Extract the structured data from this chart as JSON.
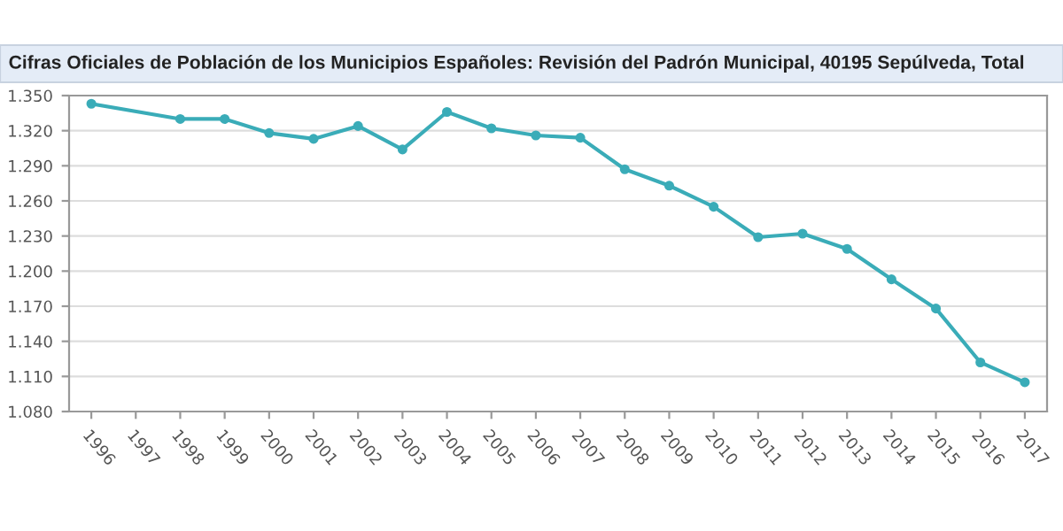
{
  "chart_data": {
    "type": "line",
    "title": "Cifras Oficiales de Población de los Municipios Españoles: Revisión del Padrón Municipal, 40195 Sepúlveda, Total",
    "categories": [
      "1996",
      "1997",
      "1998",
      "1999",
      "2000",
      "2001",
      "2002",
      "2003",
      "2004",
      "2005",
      "2006",
      "2007",
      "2008",
      "2009",
      "2010",
      "2011",
      "2012",
      "2013",
      "2014",
      "2015",
      "2016",
      "2017"
    ],
    "series": [
      {
        "color": "#3aacb8",
        "values": [
          1343,
          null,
          1330,
          1330,
          1318,
          1313,
          1324,
          1304,
          1336,
          1322,
          1316,
          1314,
          1287,
          1273,
          1255,
          1229,
          1232,
          1219,
          1193,
          1168,
          1122,
          1105
        ]
      }
    ],
    "ylim": [
      1080,
      1350
    ],
    "yticks": [
      {
        "value": 1080,
        "label": "1.080"
      },
      {
        "value": 1110,
        "label": "1.110"
      },
      {
        "value": 1140,
        "label": "1.140"
      },
      {
        "value": 1170,
        "label": "1.170"
      },
      {
        "value": 1200,
        "label": "1.200"
      },
      {
        "value": 1230,
        "label": "1.230"
      },
      {
        "value": 1260,
        "label": "1.260"
      },
      {
        "value": 1290,
        "label": "1.290"
      },
      {
        "value": 1320,
        "label": "1.320"
      },
      {
        "value": 1350,
        "label": "1.350"
      }
    ],
    "grid": "y",
    "marker": "circle",
    "line_style": "solid",
    "legend": false
  }
}
